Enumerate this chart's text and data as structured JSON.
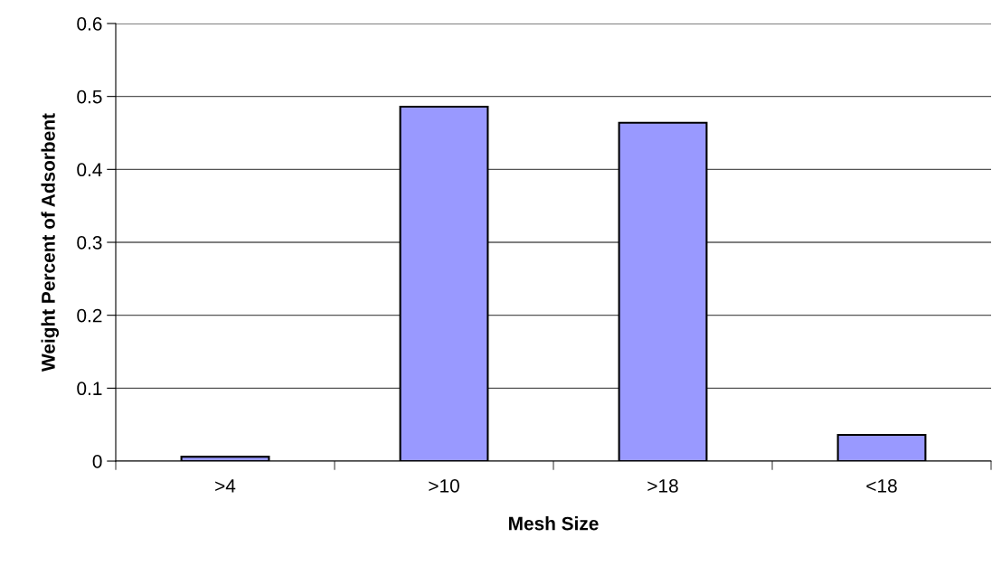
{
  "chart_data": {
    "type": "bar",
    "xlabel": "Mesh Size",
    "ylabel": "Weight Percent of Adsorbent",
    "categories": [
      ">4",
      ">10",
      ">18",
      "<18"
    ],
    "values": [
      0.006,
      0.486,
      0.464,
      0.036
    ],
    "color": "#9999ff",
    "ylim": [
      0,
      0.6
    ],
    "yticks": [
      0,
      0.1,
      0.2,
      0.3,
      0.4,
      0.5,
      0.6
    ],
    "grid": "y"
  }
}
